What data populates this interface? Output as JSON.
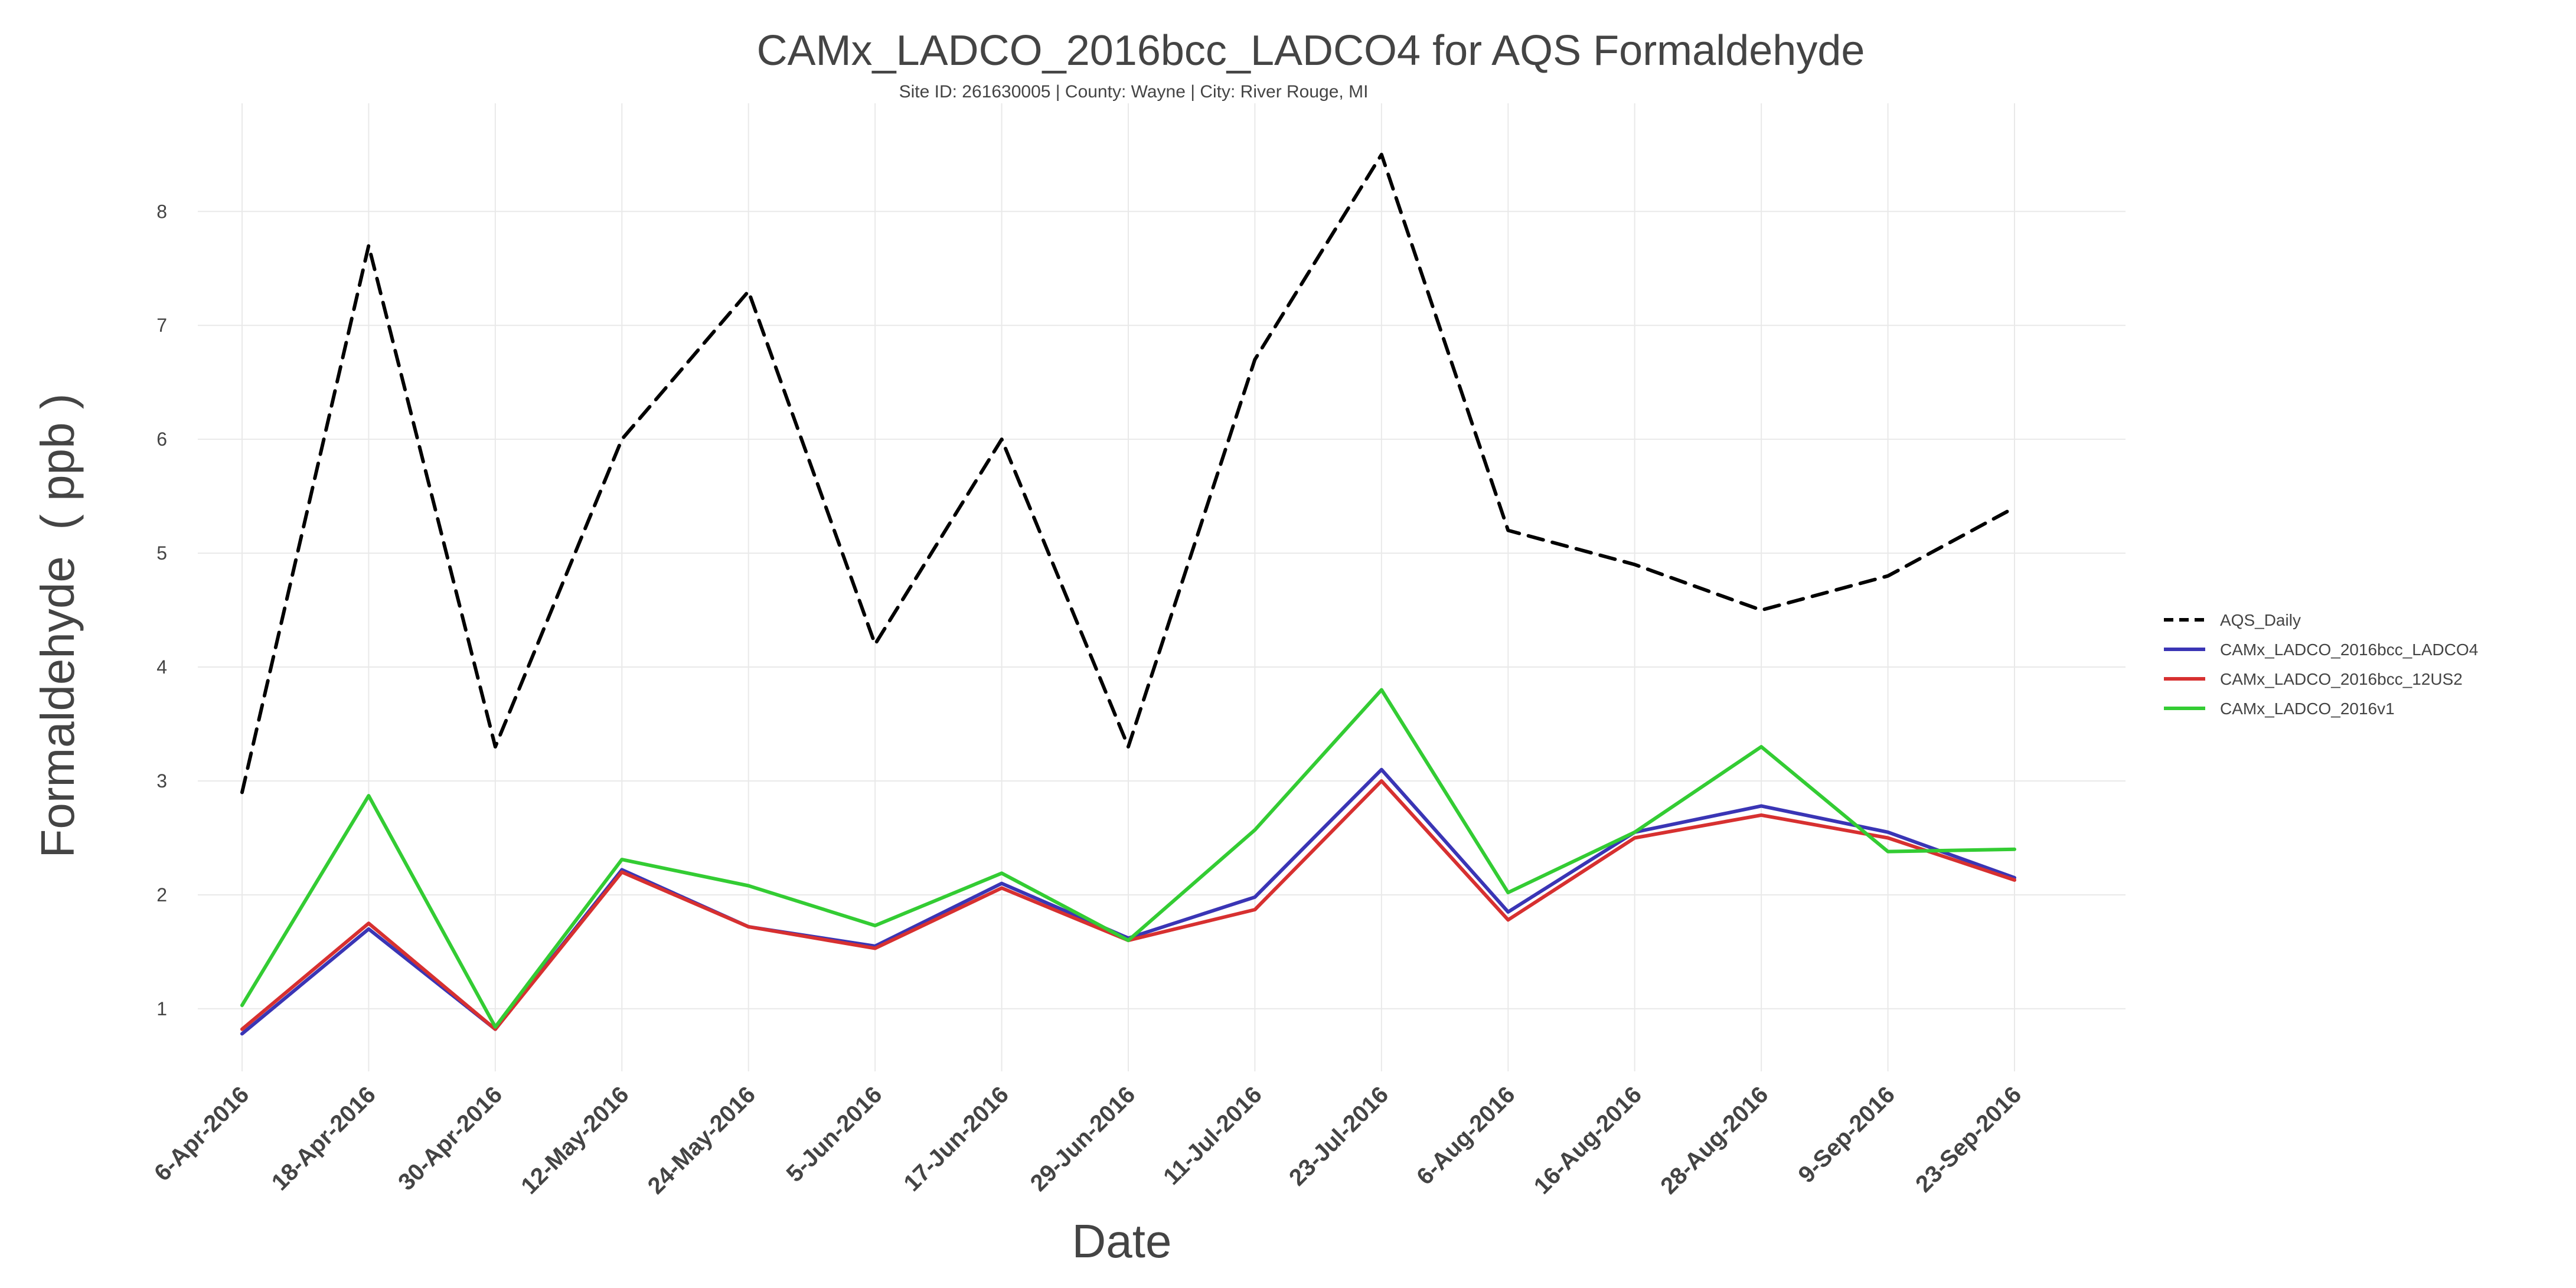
{
  "chart_data": {
    "type": "line",
    "title": "CAMx_LADCO_2016bcc_LADCO4 for AQS Formaldehyde",
    "subtitle": "Site ID: 261630005 | County: Wayne | City: River Rouge, MI",
    "xlabel": "Date",
    "ylabel": "Formaldehyde  ( ppb )",
    "categories": [
      "6-Apr-2016",
      "18-Apr-2016",
      "30-Apr-2016",
      "12-May-2016",
      "24-May-2016",
      "5-Jun-2016",
      "17-Jun-2016",
      "29-Jun-2016",
      "11-Jul-2016",
      "23-Jul-2016",
      "6-Aug-2016",
      "16-Aug-2016",
      "28-Aug-2016",
      "9-Sep-2016",
      "23-Sep-2016"
    ],
    "ylim": [
      0.45,
      8.95
    ],
    "yticks": [
      1,
      2,
      3,
      4,
      5,
      6,
      7,
      8
    ],
    "grid": true,
    "legend_position": "right",
    "series": [
      {
        "name": "AQS_Daily",
        "color": "#000000",
        "dash": true,
        "values": [
          2.9,
          7.7,
          3.3,
          6.0,
          7.3,
          4.2,
          6.0,
          3.3,
          6.7,
          8.5,
          5.2,
          4.9,
          4.5,
          4.8,
          5.4
        ]
      },
      {
        "name": "CAMx_LADCO_2016bcc_LADCO4",
        "color": "#3a35b5",
        "dash": false,
        "values": [
          0.78,
          1.7,
          0.82,
          2.22,
          1.72,
          1.55,
          2.1,
          1.62,
          1.98,
          3.1,
          1.85,
          2.55,
          2.78,
          2.55,
          2.15
        ]
      },
      {
        "name": "CAMx_LADCO_2016bcc_12US2",
        "color": "#d73030",
        "dash": false,
        "values": [
          0.82,
          1.75,
          0.82,
          2.2,
          1.72,
          1.53,
          2.06,
          1.6,
          1.87,
          3.0,
          1.78,
          2.5,
          2.7,
          2.5,
          2.13
        ]
      },
      {
        "name": "CAMx_LADCO_2016v1",
        "color": "#33cc33",
        "dash": false,
        "values": [
          1.03,
          2.87,
          0.84,
          2.31,
          2.08,
          1.73,
          2.19,
          1.6,
          2.57,
          3.8,
          2.02,
          2.55,
          3.3,
          2.38,
          2.4
        ]
      }
    ]
  }
}
